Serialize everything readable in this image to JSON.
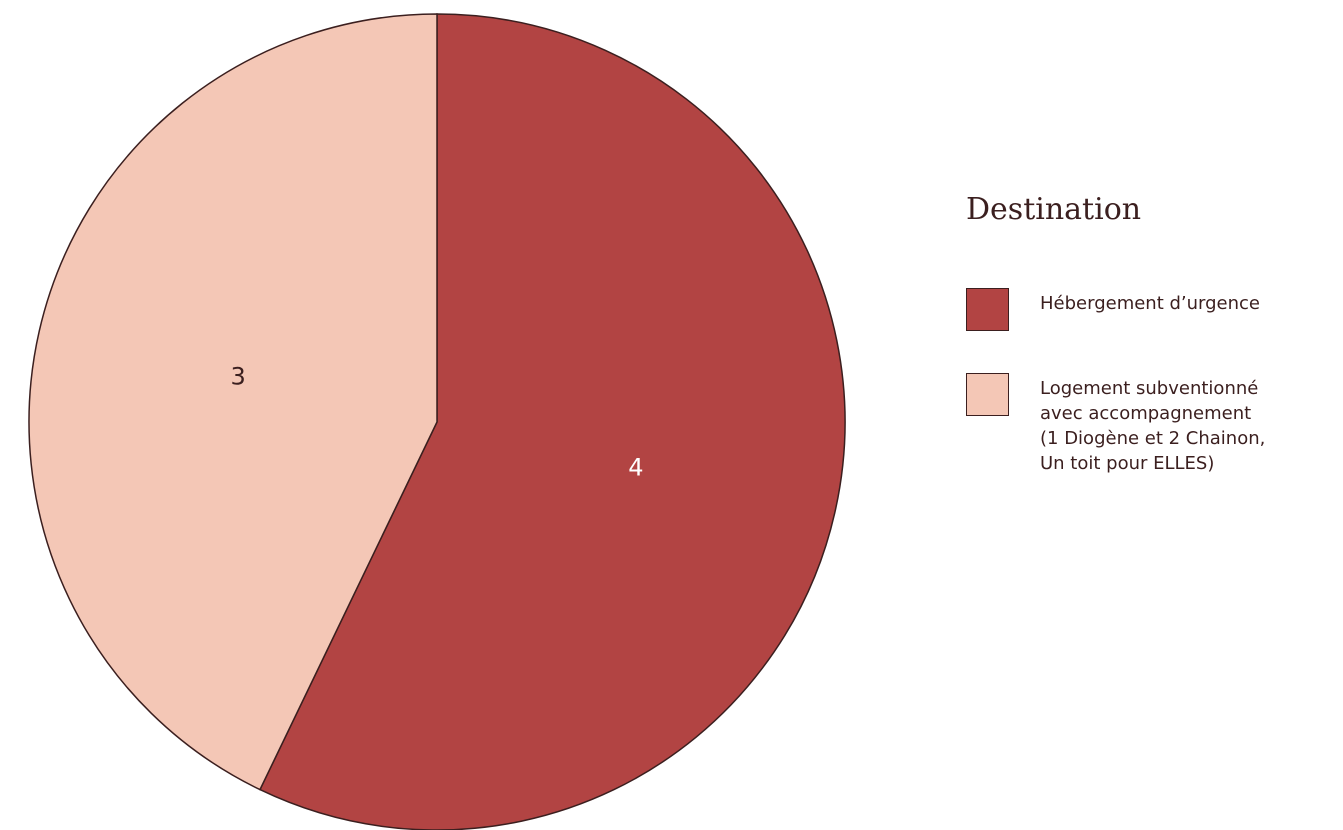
{
  "chart_data": {
    "type": "pie",
    "title": "",
    "legend_title": "Destination",
    "legend_position": "right",
    "start_angle_deg": 0,
    "direction": "clockwise",
    "slices": [
      {
        "label": "Hébergement d’urgence",
        "value": 4,
        "color": "#b24443",
        "text_color": "#ffffff"
      },
      {
        "label": "Logement subventionné avec accompagnement (1 Diogène et 2 Chainon, Un toit pour ELLES)",
        "value": 3,
        "color": "#f4c7b6",
        "text_color": "#3b1f1f"
      }
    ]
  }
}
